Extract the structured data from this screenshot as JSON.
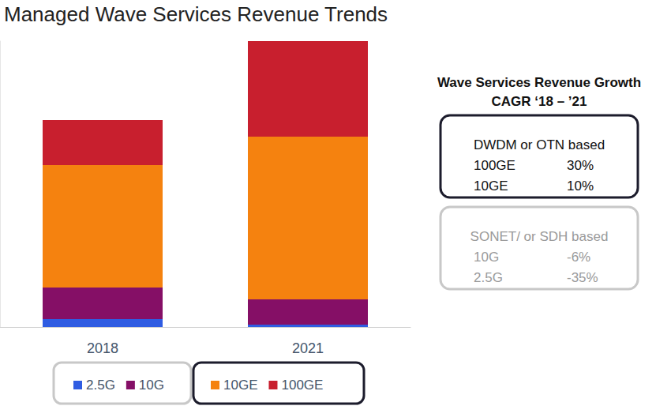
{
  "chart_data": {
    "type": "bar",
    "title": "Managed Wave Services Revenue Trends",
    "categories": [
      "2018",
      "2021"
    ],
    "series": [
      {
        "name": "2.5G",
        "color": "#2f5ce2",
        "values": [
          10,
          3
        ]
      },
      {
        "name": "10G",
        "color": "#850f66",
        "values": [
          40,
          32
        ]
      },
      {
        "name": "10GE",
        "color": "#f5820f",
        "values": [
          155,
          206
        ]
      },
      {
        "name": "100GE",
        "color": "#c81f2e",
        "values": [
          57,
          121
        ]
      }
    ],
    "stacked": true,
    "ylim": [
      0,
      362
    ],
    "grid": false,
    "tick_labels": "x",
    "legend": "bottom",
    "annotations": {
      "heading": [
        "Wave Services Revenue Growth",
        "CAGR ‘18 – ’21"
      ],
      "groups": [
        {
          "label": "DWDM or OTN based",
          "rows": [
            [
              "100GE",
              "30%"
            ],
            [
              "10GE",
              "10%"
            ]
          ]
        },
        {
          "label": "SONET/ or SDH based",
          "rows": [
            [
              "10G",
              "-6%"
            ],
            [
              "2.5G",
              "-35%"
            ]
          ]
        }
      ]
    }
  }
}
